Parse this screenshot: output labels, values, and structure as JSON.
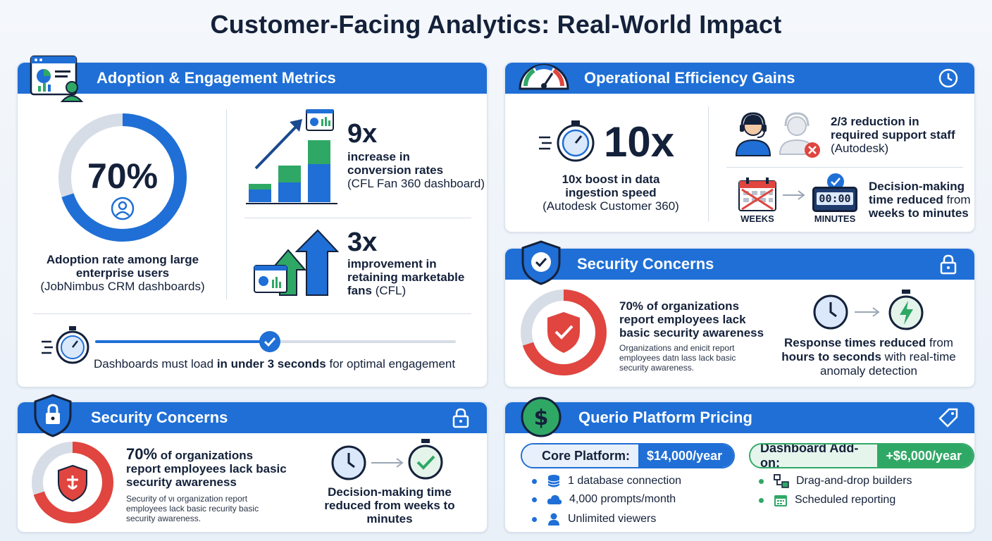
{
  "title": "Customer-Facing Analytics: Real-World Impact",
  "colors": {
    "blue": "#1f6fd6",
    "green": "#2fa866",
    "red": "#e0453f",
    "navy": "#14213a",
    "grey": "#d7dde6"
  },
  "adoption": {
    "heading": "Adoption & Engagement Metrics",
    "ring_value": "70%",
    "ring_fraction": 0.7,
    "ring_caption_1": "Adoption rate among large",
    "ring_caption_2": "enterprise users",
    "ring_caption_3": "(JobNimbus CRM dashboards)",
    "stat1_value": "9x",
    "stat1_line1": "increase in",
    "stat1_line2": "conversion rates",
    "stat1_line3": "(CFL Fan 360 dashboard)",
    "stat2_value": "3x",
    "stat2_line1": "improvement in",
    "stat2_line2": "retaining marketable",
    "stat2_line3a": "fans",
    "stat2_line3b": " (CFL)",
    "load_pre": "Dashboards must load ",
    "load_bold": "in under 3 seconds",
    "load_post": " for optimal engagement"
  },
  "operational": {
    "heading": "Operational Efficiency Gains",
    "boost_value": "10x",
    "boost_line1": "10x boost in data",
    "boost_line2": "ingestion speed",
    "boost_line3": "(Autodesk Customer 360)",
    "staff_line1": "2/3 reduction in",
    "staff_line2": "required support staff",
    "staff_line3": "(Autodesk)",
    "weeks_label": "WEEKS",
    "minutes_label": "MINUTES",
    "clock_digits": "00:00",
    "decision_line1": "Decision-making",
    "decision_line2a": "time reduced",
    "decision_line2b": " from",
    "decision_line3a": "weeks to ",
    "decision_line3b": "minutes"
  },
  "security_right": {
    "heading": "Security Concerns",
    "ring_fraction": 0.7,
    "stat_line1": "70% of organizations",
    "stat_line2": "report employees lack",
    "stat_line3": "basic security awareness",
    "small_line1": "Organizations and enicit report",
    "small_line2": "employees datn lass lack basic",
    "small_line3": "security awareness.",
    "resp_line1a": "Response times reduced",
    "resp_line1b": " from",
    "resp_line2a": "hours to seconds",
    "resp_line2b": " with real-time",
    "resp_line3": "anomaly detection"
  },
  "security_left": {
    "heading": "Security Concerns",
    "ring_fraction": 0.7,
    "stat_value": "70%",
    "stat_line1": " of organizations",
    "stat_line2": "report employees lack basic",
    "stat_line3": "security awareness",
    "small_line1": "Security of νι organization report",
    "small_line2": "employees lack basic recurity basic",
    "small_line3": "security awareness.",
    "dec_line1": "Decision-making time",
    "dec_line2": "reduced from weeks to",
    "dec_line3": "minutes"
  },
  "pricing": {
    "heading": "Querio Platform Pricing",
    "core_label": "Core Platform:",
    "core_price": "$14,000/year",
    "addon_label": "Dashboard Add-on:",
    "addon_price": "+$6,000/year",
    "core_items": [
      "1 database connection",
      "4,000 prompts/month",
      "Unlimited viewers"
    ],
    "addon_items": [
      "Drag-and-drop builders",
      "Scheduled reporting"
    ]
  }
}
